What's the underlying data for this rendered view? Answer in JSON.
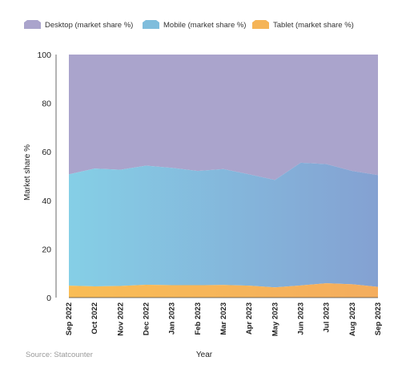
{
  "chart_data": {
    "type": "area",
    "stacked": true,
    "categories": [
      "Sep 2022",
      "Oct 2022",
      "Nov 2022",
      "Dec 2022",
      "Jan 2023",
      "Feb 2023",
      "Mar 2023",
      "Apr 2023",
      "May 2023",
      "Jun 2023",
      "Jul 2023",
      "Aug 2023",
      "Sep 2023"
    ],
    "series": [
      {
        "name": "Desktop (market share %)",
        "color": "#aaa4cc",
        "values": [
          49.3,
          46.9,
          47.4,
          45.7,
          46.6,
          47.9,
          47.1,
          49.3,
          51.6,
          44.5,
          45.1,
          47.9,
          49.6
        ]
      },
      {
        "name": "Mobile (market share %)",
        "color": "#7fbddc",
        "values": [
          45.8,
          48.5,
          47.8,
          49.0,
          48.3,
          47.0,
          47.7,
          45.8,
          44.2,
          50.5,
          49.0,
          46.6,
          46.0
        ]
      },
      {
        "name": "Tablet (market share %)",
        "color": "#f5b456",
        "values": [
          4.9,
          4.6,
          4.8,
          5.3,
          5.1,
          5.1,
          5.2,
          4.9,
          4.2,
          5.0,
          5.9,
          5.5,
          4.4
        ]
      }
    ],
    "xlabel": "Year",
    "ylabel": "Market share %",
    "ylim": [
      0,
      100
    ],
    "yticks": [
      0,
      20,
      40,
      60,
      80,
      100
    ],
    "legend_position": "top-left",
    "grid": false
  },
  "source": "Source: Statcounter"
}
